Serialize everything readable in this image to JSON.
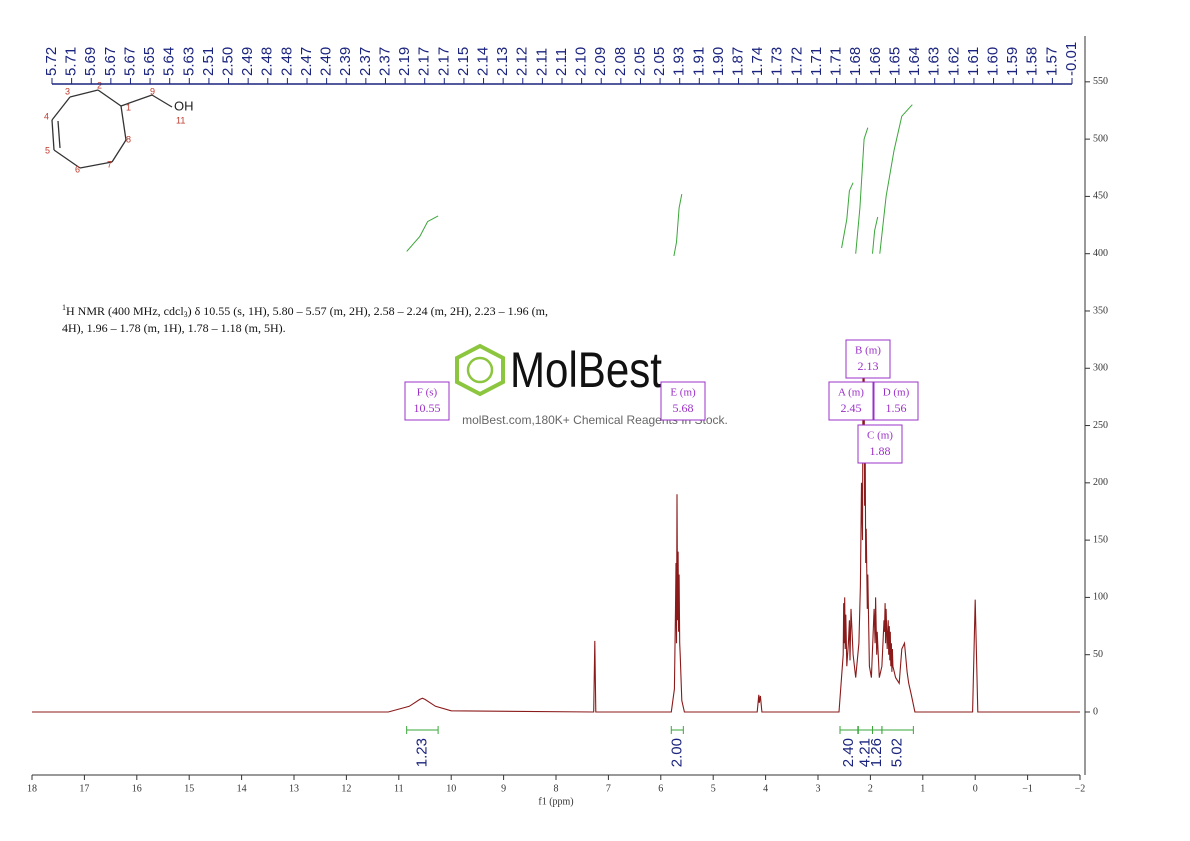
{
  "chart_data": {
    "type": "line",
    "xlabel": "f1 (ppm)",
    "xlim": [
      18,
      -2
    ],
    "ylim": [
      -55,
      590
    ],
    "xticks": [
      18,
      17,
      16,
      15,
      14,
      13,
      12,
      11,
      10,
      9,
      8,
      7,
      6,
      5,
      4,
      3,
      2,
      1,
      0,
      {
        "value": -1,
        "label": "−1"
      },
      {
        "value": -2,
        "label": "−2"
      }
    ],
    "yticks": [
      0,
      50,
      100,
      150,
      200,
      250,
      300,
      350,
      400,
      450,
      500,
      550
    ],
    "series": [
      {
        "name": "spectrum",
        "color": "#8b1a1a",
        "x": [
          18,
          11.2,
          10.8,
          10.6,
          10.55,
          10.5,
          10.3,
          10.0,
          7.28,
          7.26,
          7.24,
          5.8,
          5.74,
          5.72,
          5.71,
          5.7,
          5.69,
          5.68,
          5.67,
          5.66,
          5.65,
          5.64,
          5.63,
          5.6,
          5.55,
          4.16,
          4.13,
          4.12,
          4.1,
          4.07,
          2.6,
          2.52,
          2.51,
          2.5,
          2.49,
          2.48,
          2.47,
          2.45,
          2.42,
          2.4,
          2.39,
          2.37,
          2.33,
          2.28,
          2.22,
          2.19,
          2.17,
          2.15,
          2.14,
          2.13,
          2.12,
          2.11,
          2.1,
          2.09,
          2.08,
          2.06,
          2.05,
          2.02,
          1.98,
          1.93,
          1.91,
          1.9,
          1.88,
          1.87,
          1.83,
          1.78,
          1.74,
          1.73,
          1.72,
          1.71,
          1.7,
          1.68,
          1.66,
          1.65,
          1.64,
          1.63,
          1.62,
          1.61,
          1.6,
          1.59,
          1.58,
          1.57,
          1.52,
          1.45,
          1.4,
          1.35,
          1.3,
          1.27,
          1.22,
          1.15,
          0.05,
          0.0,
          -0.05,
          -2
        ],
        "values": [
          0,
          0,
          5,
          11,
          12,
          11,
          5,
          1,
          0,
          62,
          0,
          0,
          20,
          90,
          130,
          60,
          190,
          80,
          140,
          70,
          120,
          60,
          50,
          10,
          0,
          0,
          15,
          8,
          14,
          0,
          0,
          50,
          95,
          60,
          100,
          55,
          85,
          40,
          60,
          80,
          45,
          90,
          50,
          30,
          60,
          110,
          200,
          150,
          320,
          250,
          300,
          180,
          230,
          130,
          160,
          90,
          120,
          40,
          30,
          90,
          60,
          100,
          50,
          70,
          30,
          40,
          80,
          70,
          95,
          60,
          90,
          55,
          80,
          50,
          75,
          45,
          70,
          40,
          60,
          35,
          55,
          40,
          30,
          25,
          55,
          60,
          35,
          25,
          15,
          0,
          0,
          98,
          0,
          0
        ]
      },
      {
        "name": "integral curves",
        "color": "#3aa63a",
        "x": [
          10.85,
          10.6,
          10.45,
          10.25,
          null,
          5.75,
          5.7,
          5.65,
          5.6,
          null,
          2.55,
          2.45,
          2.4,
          2.33,
          null,
          2.28,
          2.2,
          2.12,
          2.05,
          null,
          1.96,
          1.92,
          1.86,
          null,
          1.82,
          1.7,
          1.55,
          1.4,
          1.2
        ],
        "values": [
          402,
          415,
          428,
          433,
          null,
          398,
          410,
          440,
          452,
          null,
          405,
          430,
          455,
          462,
          null,
          400,
          440,
          500,
          510,
          null,
          400,
          420,
          432,
          null,
          400,
          450,
          490,
          520,
          530
        ]
      }
    ]
  },
  "peak_labels": [
    "5.72",
    "5.71",
    "5.69",
    "5.67",
    "5.67",
    "5.65",
    "5.64",
    "5.63",
    "2.51",
    "2.50",
    "2.49",
    "2.48",
    "2.48",
    "2.47",
    "2.40",
    "2.39",
    "2.37",
    "2.37",
    "2.19",
    "2.17",
    "2.17",
    "2.15",
    "2.14",
    "2.13",
    "2.12",
    "2.11",
    "2.11",
    "2.10",
    "2.09",
    "2.08",
    "2.05",
    "2.05",
    "1.93",
    "1.91",
    "1.90",
    "1.87",
    "1.74",
    "1.73",
    "1.72",
    "1.71",
    "1.71",
    "1.68",
    "1.66",
    "1.65",
    "1.64",
    "1.63",
    "1.62",
    "1.61",
    "1.60",
    "1.59",
    "1.58",
    "1.57",
    "-0.01"
  ],
  "integrals": {
    "values": [
      1.23,
      2,
      2.4,
      4.21,
      1.26,
      5.02
    ],
    "value_labels": [
      "1.23",
      "2.00",
      "2.40",
      "4.21",
      "1.26",
      "5.02"
    ],
    "ranges": [
      [
        10.85,
        10.25
      ],
      [
        5.8,
        5.57
      ],
      [
        2.58,
        2.24
      ],
      [
        2.23,
        1.96
      ],
      [
        1.96,
        1.78
      ],
      [
        1.78,
        1.18
      ]
    ]
  },
  "multiplets": [
    {
      "label": "F (s)",
      "shift": "10.55"
    },
    {
      "label": "E (m)",
      "shift": "5.68"
    },
    {
      "label": "A (m)",
      "shift": "2.45"
    },
    {
      "label": "B (m)",
      "shift": "2.13"
    },
    {
      "label": "C (m)",
      "shift": "1.88"
    },
    {
      "label": "D (m)",
      "shift": "1.56"
    }
  ],
  "description": [
    "1",
    "H NMR (400 MHz, cdcl",
    "3",
    ") δ 10.55 (s, 1H), 5.80 – 5.57 (m, 2H), 2.58 – 2.24 (m, 2H), 2.23 – 1.96 (m,",
    "4H), 1.96 – 1.78 (m, 1H), 1.78 – 1.18 (m, 5H)."
  ],
  "structure": {
    "atoms": [
      "1",
      "2",
      "3",
      "4",
      "5",
      "6",
      "7",
      "8",
      "9"
    ],
    "group": "OH",
    "group_number": "11"
  },
  "watermark": {
    "brand": "MolBest",
    "tagline": "molBest.com,180K+ Chemical Reagents In Stock."
  }
}
